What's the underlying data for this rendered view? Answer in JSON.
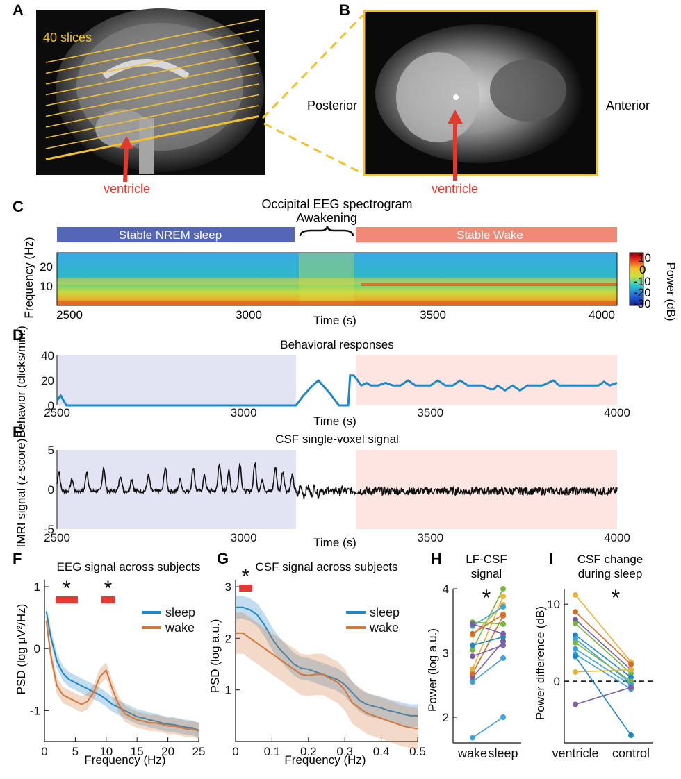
{
  "panel_labels": {
    "a": "A",
    "b": "B",
    "c": "C",
    "d": "D",
    "e": "E",
    "f": "F",
    "g": "G",
    "h": "H",
    "i": "I"
  },
  "panel_a": {
    "slices_label": "40 slices",
    "arrow_label": "ventricle",
    "slice_color": "#f2c12e",
    "arrow_color": "#e03a2f"
  },
  "panel_b": {
    "left_label": "Posterior",
    "right_label": "Anterior",
    "arrow_label": "ventricle"
  },
  "panel_c": {
    "title": "Occipital EEG spectrogram",
    "awakening_label": "Awakening",
    "nrem_label": "Stable NREM sleep",
    "wake_label": "Stable Wake",
    "nrem_color": "#5566b5",
    "wake_color": "#ef8a76",
    "ylabel": "Frequency (Hz)",
    "xlabel": "Time (s)",
    "x_ticks": [
      "2500",
      "3000",
      "3500",
      "4000"
    ],
    "y_ticks": [
      "20",
      "10"
    ],
    "colorbar_label": "Power (dB)",
    "colorbar_ticks": [
      "10",
      "0",
      "-10",
      "-20",
      "-30"
    ]
  },
  "chart_data": [
    {
      "type": "line",
      "title": "Behavioral responses",
      "xlabel": "Time (s)",
      "ylabel": "Behavior (clicks/min.)",
      "x_ticks": [
        "2500",
        "3000",
        "3500",
        "4000"
      ],
      "y_ticks": [
        "40",
        "20",
        "0"
      ],
      "xlim": [
        2500,
        4000
      ],
      "ylim": [
        0,
        40
      ],
      "color": "#1f86c7",
      "shaded_regions": [
        {
          "from": 2500,
          "to": 3140,
          "color": "#e3e4f3"
        },
        {
          "from": 3300,
          "to": 4000,
          "color": "#fde6e2"
        }
      ],
      "x": [
        2500,
        2510,
        2525,
        3140,
        3160,
        3185,
        3200,
        3230,
        3255,
        3265,
        3280,
        3285,
        3295,
        3300,
        3315,
        3330,
        3340,
        3360,
        3380,
        3400,
        3420,
        3440,
        3460,
        3480,
        3500,
        3520,
        3540,
        3560,
        3580,
        3600,
        3620,
        3640,
        3660,
        3670,
        3680,
        3700,
        3720,
        3740,
        3760,
        3800,
        3830,
        3845,
        3860,
        3880,
        3900,
        3950,
        3965,
        3980,
        4000
      ],
      "y": [
        4,
        8,
        0,
        0,
        8,
        16,
        20,
        10,
        0,
        0,
        0,
        24,
        24,
        22,
        16,
        18,
        16,
        16,
        18,
        16,
        16,
        20,
        16,
        16,
        16,
        20,
        16,
        16,
        20,
        16,
        16,
        16,
        13,
        13,
        16,
        12,
        16,
        12,
        16,
        16,
        20,
        16,
        16,
        16,
        16,
        16,
        19,
        16,
        18
      ]
    },
    {
      "type": "line",
      "title": "CSF single-voxel signal",
      "xlabel": "Time (s)",
      "ylabel": "fMRI signal (z-score)",
      "x_ticks": [
        "2500",
        "3000",
        "3500",
        "4000"
      ],
      "y_ticks": [
        "5",
        "0",
        "-5"
      ],
      "xlim": [
        2500,
        4000
      ],
      "ylim": [
        -5,
        5
      ],
      "color": "#111111",
      "shaded_regions": [
        {
          "from": 2500,
          "to": 3140,
          "color": "#e3e4f3"
        },
        {
          "from": 3300,
          "to": 4000,
          "color": "#fde6e2"
        }
      ],
      "peaks_x": [
        2505,
        2540,
        2580,
        2625,
        2670,
        2700,
        2745,
        2790,
        2830,
        2865,
        2895,
        2935,
        2960,
        2990,
        3030,
        3050,
        3085,
        3105,
        3130
      ],
      "peaks_y": [
        2.5,
        1.5,
        2.5,
        3.0,
        2.0,
        1.5,
        2.0,
        3.0,
        1.5,
        3.0,
        2.0,
        3.5,
        2.5,
        3.5,
        3.5,
        1.5,
        3.0,
        2.5,
        2.0
      ]
    },
    {
      "type": "line",
      "title": "EEG signal across subjects",
      "xlabel": "Frequency (Hz)",
      "ylabel": "PSD (log μV²/Hz)",
      "x_ticks": [
        "0",
        "5",
        "10",
        "15",
        "20",
        "25"
      ],
      "y_ticks": [
        "1",
        "0",
        "-1"
      ],
      "xlim": [
        0,
        25
      ],
      "ylim": [
        -1.5,
        1
      ],
      "significance_bars": [
        {
          "from": 1.8,
          "to": 5.4
        },
        {
          "from": 9.2,
          "to": 11.4
        }
      ],
      "significance_marker": "*",
      "series": [
        {
          "name": "sleep",
          "color": "#1f86c7",
          "x": [
            0.3,
            1,
            2,
            3,
            4,
            5,
            6,
            7,
            8,
            9,
            10,
            11,
            12,
            13,
            14,
            15,
            16,
            17,
            18,
            19,
            20,
            21,
            22,
            23,
            24,
            25
          ],
          "y": [
            0.6,
            0.2,
            -0.2,
            -0.4,
            -0.5,
            -0.55,
            -0.6,
            -0.65,
            -0.7,
            -0.75,
            -0.82,
            -0.9,
            -0.95,
            -1.0,
            -1.05,
            -1.1,
            -1.12,
            -1.15,
            -1.17,
            -1.2,
            -1.22,
            -1.23,
            -1.25,
            -1.27,
            -1.28,
            -1.32
          ],
          "band_width": 0.12
        },
        {
          "name": "wake",
          "color": "#d2773a",
          "x": [
            0.3,
            1,
            2,
            3,
            4,
            5,
            6,
            7,
            8,
            9,
            10,
            11,
            12,
            13,
            14,
            15,
            16,
            17,
            18,
            19,
            20,
            21,
            22,
            23,
            24,
            25
          ],
          "y": [
            0.45,
            -0.1,
            -0.6,
            -0.75,
            -0.8,
            -0.85,
            -0.9,
            -0.85,
            -0.7,
            -0.45,
            -0.35,
            -0.65,
            -0.9,
            -1.05,
            -1.1,
            -1.15,
            -1.17,
            -1.2,
            -1.2,
            -1.22,
            -1.25,
            -1.25,
            -1.27,
            -1.3,
            -1.3,
            -1.33
          ],
          "band_width": 0.13
        }
      ]
    },
    {
      "type": "line",
      "title": "CSF signal across subjects",
      "xlabel": "Frequency (Hz)",
      "ylabel": "PSD (log a.u.)",
      "x_ticks": [
        "0",
        "0.1",
        "0.2",
        "0.3",
        "0.4",
        "0.5"
      ],
      "y_ticks": [
        "3",
        "2",
        "1"
      ],
      "xlim": [
        0,
        0.5
      ],
      "ylim": [
        0,
        3
      ],
      "significance_bars": [
        {
          "from": 0.01,
          "to": 0.045
        }
      ],
      "significance_marker": "*",
      "series": [
        {
          "name": "sleep",
          "color": "#1f86c7",
          "x": [
            0,
            0.02,
            0.04,
            0.06,
            0.08,
            0.1,
            0.12,
            0.14,
            0.16,
            0.18,
            0.2,
            0.22,
            0.24,
            0.26,
            0.28,
            0.3,
            0.32,
            0.34,
            0.36,
            0.38,
            0.4,
            0.42,
            0.44,
            0.46,
            0.48,
            0.5
          ],
          "y": [
            2.6,
            2.6,
            2.55,
            2.45,
            2.25,
            2.0,
            1.8,
            1.65,
            1.5,
            1.42,
            1.4,
            1.35,
            1.3,
            1.25,
            1.2,
            1.1,
            0.95,
            0.8,
            0.72,
            0.68,
            0.65,
            0.6,
            0.57,
            0.53,
            0.5,
            0.5
          ],
          "band_width": 0.22
        },
        {
          "name": "wake",
          "color": "#d2773a",
          "x": [
            0,
            0.02,
            0.04,
            0.06,
            0.08,
            0.1,
            0.12,
            0.14,
            0.16,
            0.18,
            0.2,
            0.22,
            0.24,
            0.26,
            0.28,
            0.3,
            0.32,
            0.34,
            0.36,
            0.38,
            0.4,
            0.42,
            0.44,
            0.46,
            0.48,
            0.5
          ],
          "y": [
            2.1,
            2.1,
            2.0,
            1.9,
            1.8,
            1.7,
            1.6,
            1.5,
            1.4,
            1.3,
            1.28,
            1.3,
            1.3,
            1.22,
            1.15,
            1.0,
            0.75,
            0.65,
            0.55,
            0.5,
            0.45,
            0.4,
            0.35,
            0.3,
            0.27,
            0.25
          ],
          "band_width": 0.4
        }
      ]
    },
    {
      "type": "scatter",
      "title": "LF-CSF signal",
      "xlabel": "",
      "ylabel": "Power (log a.u.)",
      "categories": [
        "wake",
        "sleep"
      ],
      "y_ticks": [
        "4",
        "3",
        "2"
      ],
      "ylim": [
        1.6,
        4.0
      ],
      "significance_marker": "*",
      "pairs": [
        {
          "color": "#3fa0dd",
          "wake": 1.68,
          "sleep": 2.0
        },
        {
          "color": "#3fa0dd",
          "wake": 2.55,
          "sleep": 2.92
        },
        {
          "color": "#7a5ea8",
          "wake": 2.62,
          "sleep": 3.18
        },
        {
          "color": "#d76d26",
          "wake": 2.68,
          "sleep": 3.58
        },
        {
          "color": "#e8b33a",
          "wake": 2.75,
          "sleep": 3.88
        },
        {
          "color": "#7a5ea8",
          "wake": 2.95,
          "sleep": 3.12
        },
        {
          "color": "#76b843",
          "wake": 3.05,
          "sleep": 4.0
        },
        {
          "color": "#1f86c7",
          "wake": 3.12,
          "sleep": 3.25
        },
        {
          "color": "#e8b33a",
          "wake": 3.28,
          "sleep": 3.75
        },
        {
          "color": "#3fa0dd",
          "wake": 3.42,
          "sleep": 3.72
        },
        {
          "color": "#76b843",
          "wake": 3.48,
          "sleep": 3.45
        },
        {
          "color": "#7a5ea8",
          "wake": 3.45,
          "sleep": 3.3
        },
        {
          "color": "#d76d26",
          "wake": 3.3,
          "sleep": 3.6
        }
      ]
    },
    {
      "type": "scatter",
      "title": "CSF change during sleep",
      "xlabel": "",
      "ylabel": "Power difference (dB)",
      "categories": [
        "ventricle",
        "control"
      ],
      "y_ticks": [
        "10",
        "0"
      ],
      "ylim": [
        -8,
        12
      ],
      "reference_line": 0,
      "significance_marker": "*",
      "pairs": [
        {
          "color": "#e8b33a",
          "ventricle": 11.2,
          "control": 2.5
        },
        {
          "color": "#d76d26",
          "ventricle": 9.0,
          "control": 2.2
        },
        {
          "color": "#7a5ea8",
          "ventricle": 8.0,
          "control": 1.5
        },
        {
          "color": "#76b843",
          "ventricle": 7.5,
          "control": 1.0
        },
        {
          "color": "#1f86c7",
          "ventricle": 6.0,
          "control": 0.5
        },
        {
          "color": "#3fa0dd",
          "ventricle": 5.5,
          "control": -0.3
        },
        {
          "color": "#76b843",
          "ventricle": 5.0,
          "control": 0.0
        },
        {
          "color": "#3fa0dd",
          "ventricle": 4.2,
          "control": -0.5
        },
        {
          "color": "#3fa0dd",
          "ventricle": 3.5,
          "control": -1.0
        },
        {
          "color": "#e8b33a",
          "ventricle": 1.2,
          "control": 1.5
        },
        {
          "color": "#7a5ea8",
          "ventricle": -3.0,
          "control": -0.8
        },
        {
          "color": "#1f86c7",
          "ventricle": 3.2,
          "control": -7.0
        }
      ]
    }
  ]
}
